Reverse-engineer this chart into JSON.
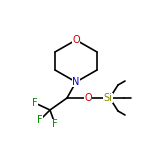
{
  "figsize": [
    1.52,
    1.52
  ],
  "dpi": 100,
  "bg": "#ffffff",
  "bond_color": "#000000",
  "bond_lw": 1.2,
  "colors": {
    "C": "#000000",
    "N": "#0000cc",
    "O": "#cc0000",
    "F": "#008800",
    "Si": "#888800"
  },
  "font_size": 7,
  "font_size_small": 6
}
